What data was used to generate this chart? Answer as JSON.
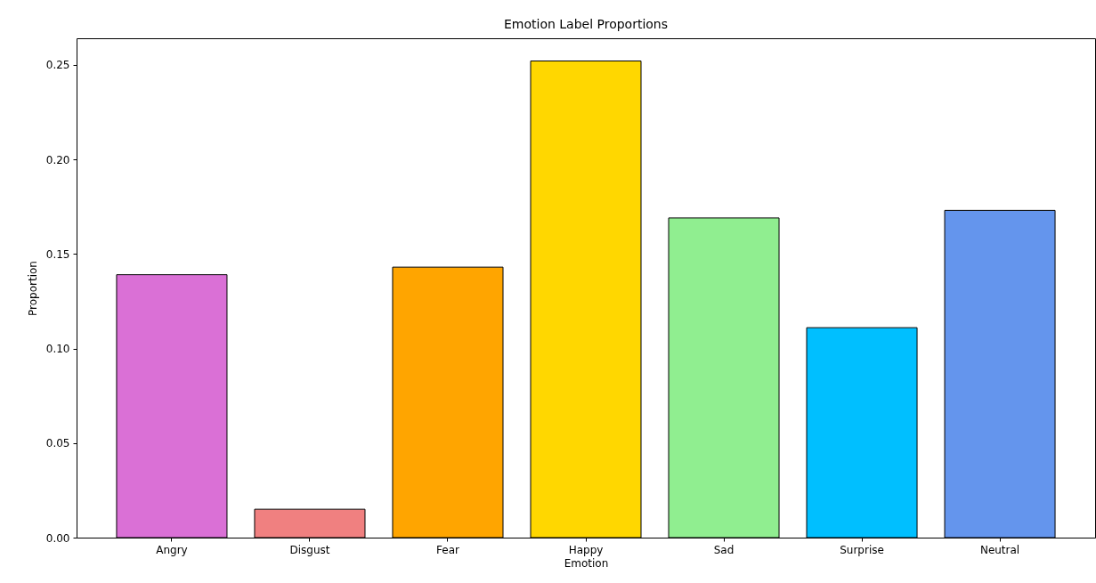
{
  "chart_data": {
    "type": "bar",
    "title": "Emotion Label Proportions",
    "xlabel": "Emotion",
    "ylabel": "Proportion",
    "categories": [
      "Angry",
      "Disgust",
      "Fear",
      "Happy",
      "Sad",
      "Surprise",
      "Neutral"
    ],
    "values": [
      0.139,
      0.015,
      0.143,
      0.252,
      0.169,
      0.111,
      0.173
    ],
    "colors": [
      "#da70d6",
      "#f08080",
      "#ffa500",
      "#ffd700",
      "#90ee90",
      "#00bfff",
      "#6495ed"
    ],
    "ylim": [
      0,
      0.264
    ],
    "yticks": [
      {
        "value": 0,
        "label": "0.00"
      },
      {
        "value": 0.05,
        "label": "0.05"
      },
      {
        "value": 0.1,
        "label": "0.10"
      },
      {
        "value": 0.15,
        "label": "0.15"
      },
      {
        "value": 0.2,
        "label": "0.20"
      },
      {
        "value": 0.25,
        "label": "0.25"
      }
    ],
    "grid": false,
    "legend": false
  }
}
